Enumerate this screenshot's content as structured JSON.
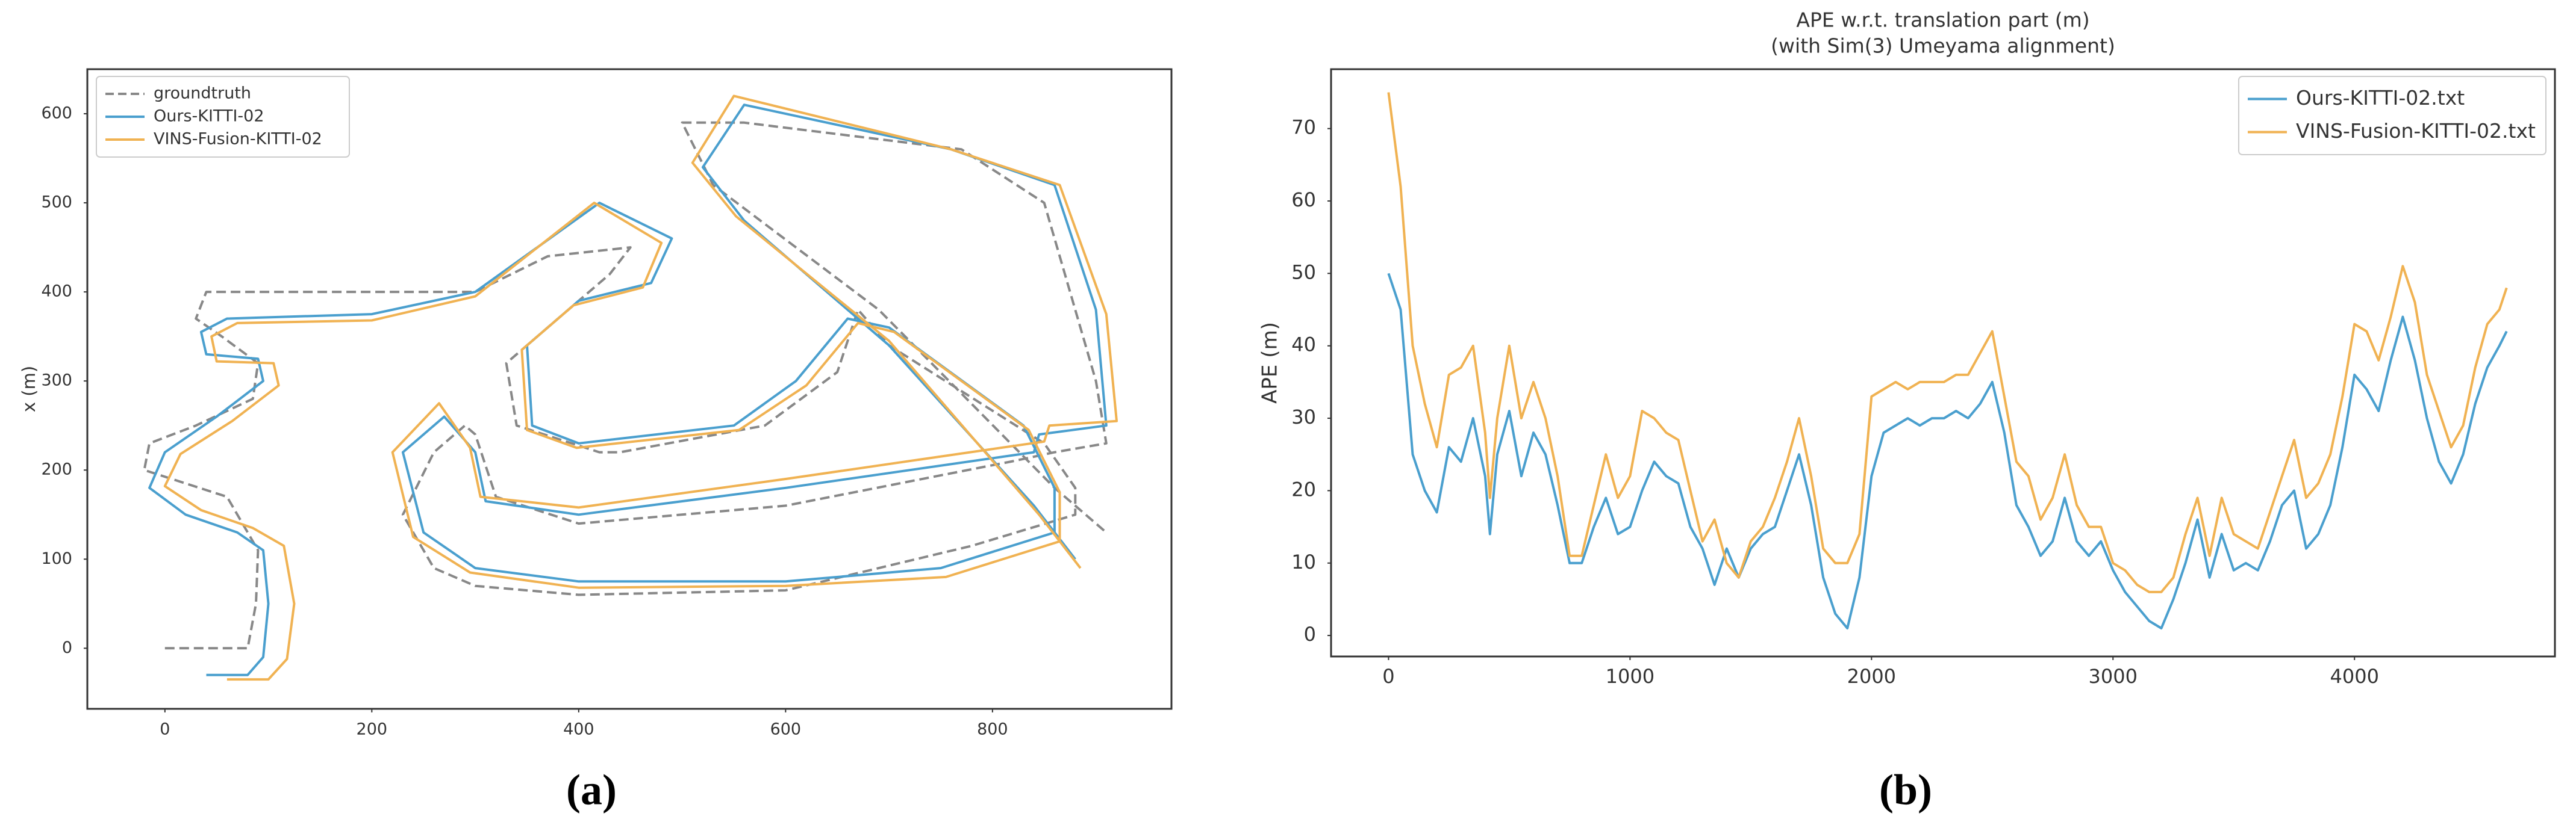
{
  "chart_data": [
    {
      "type": "trajectory",
      "caption": "(a)",
      "ylabel": "x (m)",
      "xlim": [
        -75,
        973
      ],
      "ylim": [
        -68,
        650
      ],
      "xticks": [
        0,
        200,
        400,
        600,
        800
      ],
      "yticks": [
        0,
        100,
        200,
        300,
        400,
        500,
        600
      ],
      "grid": false,
      "legend": "upper left",
      "series": [
        {
          "name": "groundtruth",
          "color": "#888888",
          "linestyle": "dashed",
          "x": [
            0,
            80,
            88,
            90,
            60,
            -20,
            -15,
            30,
            85,
            90,
            55,
            30,
            40,
            150,
            300,
            370,
            450,
            430,
            380,
            330,
            340,
            420,
            440,
            580,
            650,
            670,
            700,
            850,
            880,
            880,
            780,
            600,
            400,
            300,
            260,
            230,
            260,
            290,
            300,
            320,
            400,
            600,
            820,
            860,
            910,
            900,
            850,
            770,
            560,
            500,
            530,
            690,
            860,
            910
          ],
          "values": [
            0,
            0,
            50,
            110,
            170,
            200,
            230,
            250,
            280,
            320,
            350,
            370,
            400,
            400,
            400,
            440,
            450,
            420,
            370,
            320,
            250,
            220,
            220,
            250,
            310,
            380,
            340,
            230,
            180,
            150,
            115,
            65,
            60,
            70,
            90,
            150,
            220,
            250,
            240,
            170,
            140,
            160,
            210,
            220,
            230,
            300,
            500,
            560,
            590,
            590,
            520,
            380,
            180,
            130
          ]
        },
        {
          "name": "Ours-KITTI-02",
          "color": "#4a9fce",
          "linestyle": "solid",
          "x": [
            40,
            80,
            95,
            100,
            95,
            70,
            20,
            -15,
            0,
            50,
            95,
            90,
            40,
            35,
            60,
            200,
            300,
            420,
            490,
            470,
            400,
            350,
            355,
            400,
            550,
            610,
            660,
            700,
            830,
            860,
            860,
            750,
            600,
            400,
            300,
            250,
            230,
            270,
            300,
            310,
            400,
            600,
            840,
            845,
            910,
            900,
            860,
            760,
            560,
            520,
            560,
            700,
            840,
            880
          ],
          "values": [
            -30,
            -30,
            -10,
            50,
            110,
            130,
            150,
            180,
            220,
            260,
            300,
            325,
            330,
            355,
            370,
            375,
            400,
            500,
            460,
            410,
            390,
            340,
            250,
            230,
            250,
            300,
            370,
            360,
            250,
            180,
            130,
            90,
            75,
            75,
            90,
            130,
            220,
            260,
            220,
            165,
            150,
            180,
            220,
            240,
            250,
            380,
            520,
            560,
            610,
            540,
            480,
            340,
            160,
            100
          ]
        },
        {
          "name": "VINS-Fusion-KITTI-02",
          "color": "#f0b252",
          "linestyle": "solid",
          "x": [
            60,
            100,
            118,
            125,
            115,
            85,
            35,
            0,
            15,
            65,
            110,
            105,
            50,
            45,
            70,
            200,
            300,
            415,
            480,
            462,
            395,
            345,
            350,
            398,
            555,
            620,
            670,
            705,
            835,
            865,
            865,
            755,
            600,
            400,
            295,
            240,
            220,
            265,
            295,
            305,
            400,
            600,
            850,
            855,
            920,
            910,
            865,
            760,
            550,
            510,
            552,
            700,
            845,
            885
          ],
          "values": [
            -35,
            -35,
            -12,
            50,
            115,
            135,
            155,
            182,
            218,
            255,
            295,
            320,
            322,
            350,
            365,
            368,
            395,
            500,
            455,
            405,
            385,
            335,
            245,
            225,
            245,
            295,
            365,
            355,
            245,
            175,
            120,
            80,
            70,
            68,
            85,
            125,
            220,
            275,
            225,
            170,
            158,
            190,
            232,
            250,
            255,
            375,
            520,
            560,
            620,
            545,
            485,
            345,
            150,
            90
          ]
        }
      ]
    },
    {
      "type": "line",
      "caption": "(b)",
      "title": "APE w.r.t. translation part (m)",
      "subtitle": "(with Sim(3) Umeyama alignment)",
      "ylabel": "APE (m)",
      "xlim": [
        -238,
        4830
      ],
      "ylim": [
        -2.9,
        78.2
      ],
      "xticks": [
        0,
        1000,
        2000,
        3000,
        4000
      ],
      "yticks": [
        0,
        10,
        20,
        30,
        40,
        50,
        60,
        70
      ],
      "grid": false,
      "legend": "upper right",
      "x": [
        0,
        50,
        100,
        150,
        200,
        250,
        300,
        350,
        400,
        420,
        450,
        500,
        550,
        600,
        650,
        700,
        750,
        800,
        850,
        900,
        950,
        1000,
        1050,
        1100,
        1150,
        1200,
        1250,
        1300,
        1350,
        1400,
        1450,
        1500,
        1550,
        1600,
        1650,
        1700,
        1750,
        1800,
        1850,
        1900,
        1950,
        2000,
        2050,
        2100,
        2150,
        2200,
        2250,
        2300,
        2350,
        2400,
        2450,
        2500,
        2550,
        2600,
        2650,
        2700,
        2750,
        2800,
        2850,
        2900,
        2950,
        3000,
        3050,
        3100,
        3150,
        3200,
        3250,
        3300,
        3350,
        3400,
        3450,
        3500,
        3550,
        3600,
        3650,
        3700,
        3750,
        3800,
        3850,
        3900,
        3950,
        4000,
        4050,
        4100,
        4150,
        4200,
        4250,
        4300,
        4350,
        4400,
        4450,
        4500,
        4550,
        4600,
        4630
      ],
      "series": [
        {
          "name": "Ours-KITTI-02.txt",
          "color": "#4a9fce",
          "linestyle": "solid",
          "values": [
            50,
            45,
            25,
            20,
            17,
            26,
            24,
            30,
            22,
            14,
            25,
            31,
            22,
            28,
            25,
            18,
            10,
            10,
            15,
            19,
            14,
            15,
            20,
            24,
            22,
            21,
            15,
            12,
            7,
            12,
            8,
            12,
            14,
            15,
            20,
            25,
            18,
            8,
            3,
            1,
            8,
            22,
            28,
            29,
            30,
            29,
            30,
            30,
            31,
            30,
            32,
            35,
            28,
            18,
            15,
            11,
            13,
            19,
            13,
            11,
            13,
            9,
            6,
            4,
            2,
            1,
            5,
            10,
            16,
            8,
            14,
            9,
            10,
            9,
            13,
            18,
            20,
            12,
            14,
            18,
            26,
            36,
            34,
            31,
            38,
            44,
            38,
            30,
            24,
            21,
            25,
            32,
            37,
            40,
            42
          ]
        },
        {
          "name": "VINS-Fusion-KITTI-02.txt",
          "color": "#f0b252",
          "linestyle": "solid",
          "values": [
            75,
            62,
            40,
            32,
            26,
            36,
            37,
            40,
            28,
            19,
            30,
            40,
            30,
            35,
            30,
            22,
            11,
            11,
            18,
            25,
            19,
            22,
            31,
            30,
            28,
            27,
            20,
            13,
            16,
            10,
            8,
            13,
            15,
            19,
            24,
            30,
            22,
            12,
            10,
            10,
            14,
            33,
            34,
            35,
            34,
            35,
            35,
            35,
            36,
            36,
            39,
            42,
            33,
            24,
            22,
            16,
            19,
            25,
            18,
            15,
            15,
            10,
            9,
            7,
            6,
            6,
            8,
            14,
            19,
            11,
            19,
            14,
            13,
            12,
            17,
            22,
            27,
            19,
            21,
            25,
            33,
            43,
            42,
            38,
            44,
            51,
            46,
            36,
            31,
            26,
            29,
            37,
            43,
            45,
            48
          ]
        }
      ]
    }
  ]
}
